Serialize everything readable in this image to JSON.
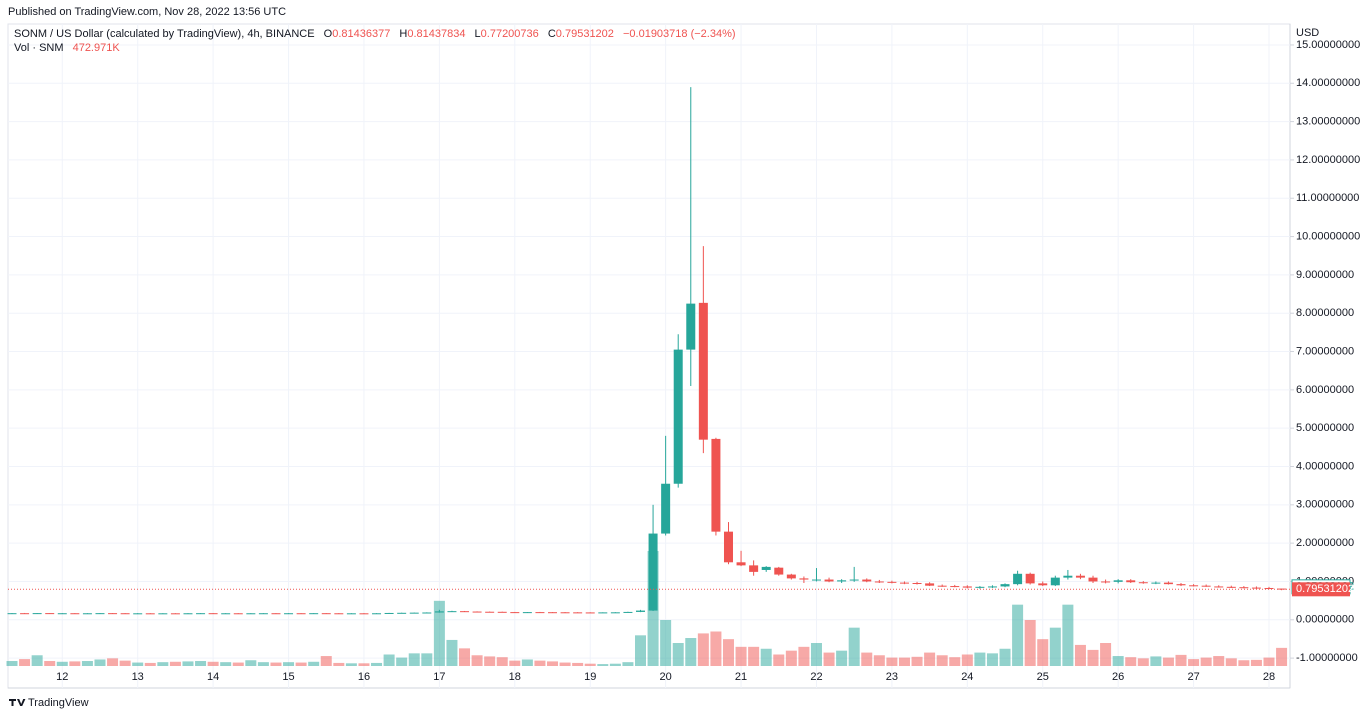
{
  "header": {
    "published": "Published on TradingView.com, Nov 28, 2022 13:56 UTC",
    "symbol": "SONM / US Dollar (calculated by TradingView), 4h, BINANCE",
    "ohlc": [
      {
        "key": "O",
        "value": "0.81436377"
      },
      {
        "key": "H",
        "value": "0.81437834"
      },
      {
        "key": "L",
        "value": "0.77200736"
      },
      {
        "key": "C",
        "value": "0.79531202"
      }
    ],
    "change": "−0.01903718 (−2.34%)",
    "vol_label": "Vol · SNM",
    "vol_value": "472.971K",
    "footer": "TradingView"
  },
  "chart_data": {
    "type": "candlestick",
    "y_axis_label": "USD",
    "up_color": "#26a69a",
    "down_color": "#ef5350",
    "grid": true,
    "ylim": [
      -1.78,
      15.39
    ],
    "yticks": [
      {
        "value": -1,
        "label": "-1.00000000"
      },
      {
        "value": 0,
        "label": "0.00000000"
      },
      {
        "value": 1,
        "label": "1.00000000"
      },
      {
        "value": 2,
        "label": "2.00000000"
      },
      {
        "value": 3,
        "label": "3.00000000"
      },
      {
        "value": 4,
        "label": "4.00000000"
      },
      {
        "value": 5,
        "label": "5.00000000"
      },
      {
        "value": 6,
        "label": "6.00000000"
      },
      {
        "value": 7,
        "label": "7.00000000"
      },
      {
        "value": 8,
        "label": "8.00000000"
      },
      {
        "value": 9,
        "label": "9.00000000"
      },
      {
        "value": 10,
        "label": "10.00000000"
      },
      {
        "value": 11,
        "label": "11.00000000"
      },
      {
        "value": 12,
        "label": "12.00000000"
      },
      {
        "value": 13,
        "label": "13.00000000"
      },
      {
        "value": 14,
        "label": "14.00000000"
      },
      {
        "value": 15,
        "label": "15.00000000"
      }
    ],
    "price_markers": [
      {
        "value": 0.85962182,
        "label": "0.85962182",
        "color": "#26a69a",
        "style": "outline"
      },
      {
        "value": 0.79531202,
        "label": "0.79531202",
        "color": "#ef5350",
        "style": "filled"
      }
    ],
    "categories": [
      null,
      null,
      null,
      null,
      "12",
      null,
      null,
      null,
      null,
      null,
      "13",
      null,
      null,
      null,
      null,
      null,
      "14",
      null,
      null,
      null,
      null,
      null,
      "15",
      null,
      null,
      null,
      null,
      null,
      "16",
      null,
      null,
      null,
      null,
      null,
      "17",
      null,
      null,
      null,
      null,
      null,
      "18",
      null,
      null,
      null,
      null,
      null,
      "19",
      null,
      null,
      null,
      null,
      null,
      "20",
      null,
      null,
      null,
      null,
      null,
      "21",
      null,
      null,
      null,
      null,
      null,
      "22",
      null,
      null,
      null,
      null,
      null,
      "23",
      null,
      null,
      null,
      null,
      null,
      "24",
      null,
      null,
      null,
      null,
      null,
      "25",
      null,
      null,
      null,
      null,
      null,
      "26",
      null,
      null,
      null,
      null,
      null,
      "27",
      null,
      null,
      null,
      null,
      null,
      "28",
      null
    ],
    "open": [
      0.17,
      0.172,
      0.17,
      0.174,
      0.169,
      0.171,
      0.168,
      0.17,
      0.173,
      0.171,
      0.168,
      0.169,
      0.167,
      0.169,
      0.168,
      0.17,
      0.172,
      0.169,
      0.17,
      0.168,
      0.17,
      0.171,
      0.169,
      0.171,
      0.17,
      0.172,
      0.17,
      0.168,
      0.169,
      0.168,
      0.17,
      0.178,
      0.182,
      0.186,
      0.19,
      0.22,
      0.225,
      0.215,
      0.21,
      0.208,
      0.2,
      0.198,
      0.2,
      0.198,
      0.196,
      0.194,
      0.192,
      0.19,
      0.193,
      0.195,
      0.205,
      0.24,
      2.25,
      3.55,
      7.05,
      8.27,
      4.72,
      2.3,
      1.5,
      1.42,
      1.3,
      1.36,
      1.18,
      1.08,
      1.05,
      1.05,
      1.0,
      1.03,
      1.05,
      1.0,
      0.99,
      0.97,
      0.96,
      0.95,
      0.89,
      0.88,
      0.87,
      0.84,
      0.86,
      0.87,
      0.93,
      1.2,
      0.95,
      0.9,
      1.1,
      1.15,
      1.1,
      1.0,
      0.99,
      1.03,
      0.98,
      0.96,
      0.97,
      0.93,
      0.9,
      0.89,
      0.87,
      0.86,
      0.85,
      0.84,
      0.83,
      0.81436377
    ],
    "high": [
      0.175,
      0.178,
      0.176,
      0.176,
      0.173,
      0.175,
      0.172,
      0.176,
      0.177,
      0.174,
      0.172,
      0.173,
      0.171,
      0.173,
      0.172,
      0.174,
      0.175,
      0.173,
      0.174,
      0.172,
      0.174,
      0.175,
      0.173,
      0.174,
      0.174,
      0.176,
      0.174,
      0.172,
      0.173,
      0.172,
      0.18,
      0.185,
      0.19,
      0.195,
      0.26,
      0.235,
      0.23,
      0.22,
      0.215,
      0.212,
      0.205,
      0.203,
      0.205,
      0.202,
      0.2,
      0.198,
      0.196,
      0.195,
      0.198,
      0.21,
      0.26,
      3.0,
      4.8,
      7.45,
      13.9,
      9.75,
      4.75,
      2.55,
      1.8,
      1.55,
      1.4,
      1.38,
      1.2,
      1.13,
      1.35,
      1.1,
      1.06,
      1.38,
      1.08,
      1.04,
      1.02,
      1.0,
      0.99,
      0.98,
      0.92,
      0.91,
      0.9,
      0.88,
      0.9,
      0.95,
      1.28,
      1.23,
      1.0,
      1.15,
      1.3,
      1.2,
      1.15,
      1.05,
      1.06,
      1.06,
      1.01,
      1.0,
      1.0,
      0.96,
      0.93,
      0.92,
      0.9,
      0.89,
      0.88,
      0.87,
      0.86,
      0.81437834
    ],
    "low": [
      0.165,
      0.168,
      0.166,
      0.168,
      0.165,
      0.167,
      0.164,
      0.167,
      0.168,
      0.166,
      0.164,
      0.165,
      0.163,
      0.166,
      0.164,
      0.166,
      0.167,
      0.165,
      0.166,
      0.164,
      0.166,
      0.167,
      0.165,
      0.167,
      0.166,
      0.168,
      0.166,
      0.164,
      0.165,
      0.164,
      0.166,
      0.172,
      0.176,
      0.18,
      0.185,
      0.212,
      0.212,
      0.205,
      0.202,
      0.198,
      0.195,
      0.192,
      0.195,
      0.192,
      0.19,
      0.188,
      0.186,
      0.185,
      0.188,
      0.19,
      0.2,
      0.23,
      2.2,
      3.45,
      6.1,
      4.35,
      2.2,
      1.45,
      1.4,
      1.15,
      1.25,
      1.15,
      1.05,
      0.96,
      1.0,
      0.98,
      0.96,
      0.99,
      0.98,
      0.96,
      0.95,
      0.93,
      0.92,
      0.88,
      0.86,
      0.85,
      0.82,
      0.81,
      0.83,
      0.85,
      0.9,
      0.92,
      0.88,
      0.88,
      1.05,
      1.06,
      0.96,
      0.95,
      0.95,
      0.96,
      0.94,
      0.93,
      0.92,
      0.88,
      0.87,
      0.86,
      0.84,
      0.83,
      0.82,
      0.8,
      0.8,
      0.77200736
    ],
    "close": [
      0.172,
      0.17,
      0.174,
      0.169,
      0.171,
      0.168,
      0.17,
      0.173,
      0.171,
      0.168,
      0.169,
      0.167,
      0.169,
      0.168,
      0.17,
      0.172,
      0.169,
      0.17,
      0.168,
      0.17,
      0.171,
      0.169,
      0.171,
      0.17,
      0.172,
      0.17,
      0.168,
      0.169,
      0.168,
      0.17,
      0.178,
      0.182,
      0.186,
      0.19,
      0.22,
      0.225,
      0.215,
      0.21,
      0.208,
      0.2,
      0.198,
      0.2,
      0.198,
      0.196,
      0.194,
      0.192,
      0.19,
      0.193,
      0.195,
      0.205,
      0.24,
      2.25,
      3.55,
      7.05,
      8.25,
      4.7,
      2.3,
      1.5,
      1.42,
      1.25,
      1.38,
      1.18,
      1.08,
      1.05,
      1.05,
      1.0,
      1.03,
      1.05,
      1.0,
      0.99,
      0.97,
      0.96,
      0.95,
      0.89,
      0.88,
      0.87,
      0.84,
      0.86,
      0.87,
      0.93,
      1.2,
      0.95,
      0.9,
      1.1,
      1.15,
      1.1,
      1.0,
      0.99,
      1.03,
      0.98,
      0.96,
      0.97,
      0.93,
      0.9,
      0.89,
      0.87,
      0.86,
      0.85,
      0.84,
      0.83,
      0.8144,
      0.79531202
    ],
    "volume": [
      130000,
      180000,
      280000,
      130000,
      110000,
      120000,
      130000,
      170000,
      200000,
      140000,
      90000,
      80000,
      100000,
      110000,
      120000,
      130000,
      110000,
      100000,
      90000,
      150000,
      100000,
      90000,
      100000,
      90000,
      110000,
      260000,
      80000,
      70000,
      70000,
      80000,
      300000,
      220000,
      330000,
      330000,
      1700000,
      680000,
      460000,
      280000,
      250000,
      230000,
      140000,
      170000,
      140000,
      120000,
      90000,
      80000,
      60000,
      50000,
      60000,
      100000,
      800000,
      3000000,
      1200000,
      600000,
      730000,
      850000,
      900000,
      700000,
      500000,
      500000,
      450000,
      300000,
      400000,
      500000,
      600000,
      350000,
      400000,
      1000000,
      350000,
      280000,
      220000,
      220000,
      240000,
      350000,
      280000,
      230000,
      300000,
      350000,
      330000,
      450000,
      1600000,
      1200000,
      700000,
      1000000,
      1600000,
      550000,
      420000,
      600000,
      260000,
      230000,
      200000,
      250000,
      220000,
      290000,
      180000,
      220000,
      260000,
      200000,
      150000,
      160000,
      220000,
      472971
    ]
  }
}
